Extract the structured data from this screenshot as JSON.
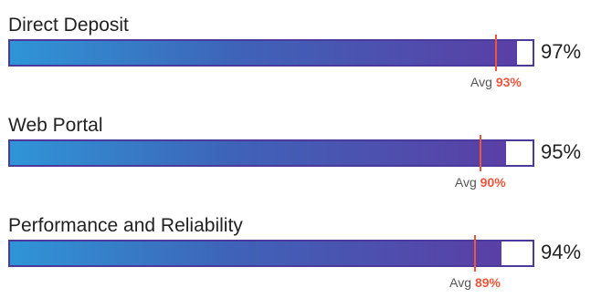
{
  "chart_data": {
    "type": "bar",
    "orientation": "horizontal",
    "scale_max": 100,
    "avg_prefix": "Avg",
    "colors": {
      "bar_start": "#2f95d6",
      "bar_end": "#5a3fa6",
      "avg_marker": "#f0553c",
      "track_border": "#4a3a9c"
    },
    "items": [
      {
        "label": "Direct Deposit",
        "value": 97,
        "value_text": "97%",
        "avg": 93,
        "avg_text": "93%"
      },
      {
        "label": "Web Portal",
        "value": 95,
        "value_text": "95%",
        "avg": 90,
        "avg_text": "90%"
      },
      {
        "label": "Performance and Reliability",
        "value": 94,
        "value_text": "94%",
        "avg": 89,
        "avg_text": "89%"
      }
    ]
  }
}
